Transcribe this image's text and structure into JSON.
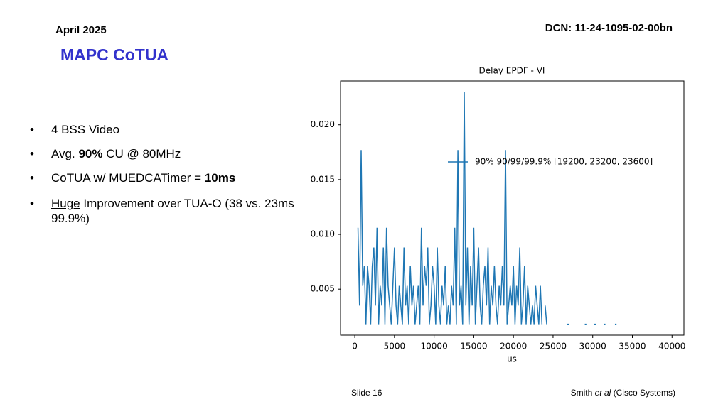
{
  "header": {
    "date": "April 2025",
    "dcn": "DCN: 11-24-1095-02-00bn",
    "title": "MAPC CoTUA"
  },
  "bullets": [
    [
      {
        "text": "4 BSS Video"
      }
    ],
    [
      {
        "text": "Avg. "
      },
      {
        "text": "90%",
        "bold": true
      },
      {
        "text": " CU @ 80MHz"
      }
    ],
    [
      {
        "text": "CoTUA w/ MUEDCATimer = "
      },
      {
        "text": "10ms",
        "bold": true
      }
    ],
    [
      {
        "text": "Huge",
        "underline": true
      },
      {
        "text": " Improvement over TUA-O (38 vs. 23ms 99.9%)"
      }
    ]
  ],
  "footer": {
    "slide": "Slide 16",
    "author": [
      {
        "text": "Smith "
      },
      {
        "text": "et al",
        "italic": true
      },
      {
        "text": " (Cisco Systems)"
      }
    ]
  },
  "chart_data": {
    "type": "line",
    "title": "Delay EPDF - VI",
    "x_label": "us",
    "legend": "center right",
    "xlim": [
      -1800,
      41500
    ],
    "ylim": [
      0.0008,
      0.024
    ],
    "xticks": [
      0,
      5000,
      10000,
      15000,
      20000,
      25000,
      30000,
      35000,
      40000
    ],
    "yticks": [
      0.005,
      {
        "value": 0.01,
        "label": "0.010"
      },
      0.015,
      {
        "value": 0.02,
        "label": "0.020"
      }
    ],
    "x": [
      400,
      600,
      800,
      1000,
      1200,
      1400,
      1600,
      1800,
      2000,
      2200,
      2400,
      2600,
      2800,
      3000,
      3200,
      3400,
      3600,
      3800,
      4000,
      4200,
      4400,
      4600,
      4800,
      5000,
      5200,
      5400,
      5600,
      5800,
      6000,
      6200,
      6400,
      6600,
      6800,
      7000,
      7200,
      7400,
      7600,
      7800,
      8000,
      8200,
      8400,
      8600,
      8800,
      9000,
      9200,
      9400,
      9600,
      9800,
      10000,
      10200,
      10400,
      10600,
      10800,
      11000,
      11200,
      11400,
      11600,
      11800,
      12000,
      12200,
      12400,
      12600,
      12800,
      13000,
      13200,
      13400,
      13600,
      13800,
      14000,
      14200,
      14400,
      14600,
      14800,
      15000,
      15200,
      15400,
      15600,
      15800,
      16000,
      16200,
      16400,
      16600,
      16800,
      17000,
      17200,
      17400,
      17600,
      17800,
      18000,
      18200,
      18400,
      18600,
      18800,
      19000,
      19200,
      19400,
      19600,
      19800,
      20000,
      20200,
      20400,
      20600,
      20800,
      21000,
      21200,
      21400,
      21600,
      21800,
      22000,
      22200,
      22400,
      22600,
      22800,
      23000,
      23200,
      23400,
      23600,
      23800,
      24000,
      24200,
      24400,
      26800,
      27000,
      27200,
      29000,
      29200,
      29400,
      30200,
      30400,
      30600,
      31400,
      31600,
      31800,
      32800,
      33000
    ],
    "series": [
      {
        "name": "90% 90/99/99.9% [19200, 23200, 23600]",
        "color": "#1f77b4",
        "values": [
          0.0106,
          0.0035,
          0.0177,
          0.0053,
          0.0071,
          0.0018,
          0.0071,
          0.0053,
          0.0018,
          0.0071,
          0.0088,
          0.0035,
          0.0106,
          0.0018,
          0.0053,
          0.0035,
          0.0088,
          0.0018,
          0.0106,
          0.0053,
          0.0035,
          0.0018,
          0.0053,
          0.0088,
          0.0035,
          0.0018,
          0.0053,
          0.0035,
          0.0018,
          0.0088,
          0.0035,
          0.0053,
          0.0018,
          0.0071,
          0.0035,
          0.0053,
          0.0018,
          0.0035,
          0.0053,
          0.0018,
          0.0106,
          0.0035,
          0.0071,
          0.0053,
          0.0088,
          0.0018,
          0.0035,
          0.0071,
          0.0053,
          0.0018,
          0.0088,
          0.0035,
          0.0018,
          0.0053,
          0.0035,
          0.0071,
          0.0018,
          0.0035,
          0.0018,
          0.0053,
          0.0035,
          0.0106,
          0.0018,
          0.0177,
          0.0035,
          0.0053,
          0.0018,
          0.023,
          0.0035,
          0.0088,
          0.0018,
          0.0071,
          0.0035,
          0.0106,
          0.0018,
          0.0053,
          0.0088,
          0.0035,
          0.0018,
          0.0053,
          0.0071,
          0.0035,
          0.0088,
          0.0018,
          0.0053,
          0.0035,
          0.0071,
          0.0035,
          0.0018,
          0.0053,
          0.0035,
          0.0071,
          0.0035,
          0.0177,
          0.0018,
          0.0035,
          0.0053,
          0.0035,
          0.0071,
          0.0018,
          0.0053,
          0.0035,
          0.0088,
          0.0018,
          0.0035,
          0.0071,
          0.0018,
          0.0053,
          0.0035,
          0.0018,
          0.0035,
          0.0018,
          0.0053,
          0.0035,
          0.0018,
          0.0053,
          0.0018,
          null,
          0.0035,
          0.0018,
          null,
          0.0018,
          0.0018,
          null,
          0.0018,
          0.0018,
          null,
          0.0018,
          0.0018,
          null,
          0.0018,
          0.0018,
          null,
          0.0018,
          0.0018
        ]
      }
    ]
  }
}
